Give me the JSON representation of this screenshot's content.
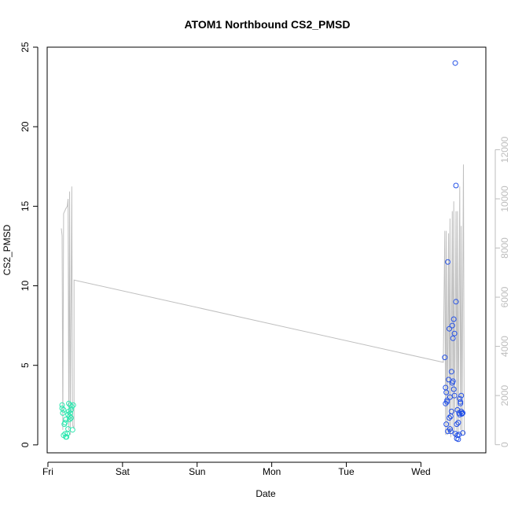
{
  "chart_data": {
    "type": "scatter",
    "title": "ATOM1 Northbound CS2_PMSD",
    "xlabel": "Date",
    "ylabel": "CS2_PMSD",
    "x_ticks": [
      "Fri",
      "Sat",
      "Sun",
      "Mon",
      "Tue",
      "Wed"
    ],
    "xlim": [
      -0.01,
      5.87
    ],
    "ylim": [
      -0.5,
      25
    ],
    "y_ticks": [
      0,
      5,
      10,
      15,
      20,
      25
    ],
    "y2_ticks": [
      0,
      2000,
      4000,
      6000,
      8000,
      10000,
      12000
    ],
    "y2lim": [
      -330,
      16170
    ],
    "grid": false,
    "colors": {
      "series1": "#2ee8b0",
      "series2": "#2451e6",
      "line": "#bfbfbf"
    },
    "series": [
      {
        "points": [
          [
            0.19,
            2.5
          ],
          [
            0.19,
            2.3
          ],
          [
            0.2,
            2.0
          ],
          [
            0.21,
            2.2
          ],
          [
            0.21,
            0.6
          ],
          [
            0.22,
            1.3
          ],
          [
            0.23,
            0.7
          ],
          [
            0.23,
            1.4
          ],
          [
            0.24,
            0.5
          ],
          [
            0.24,
            1.6
          ],
          [
            0.25,
            0.5
          ],
          [
            0.26,
            0.7
          ],
          [
            0.27,
            1.0
          ],
          [
            0.27,
            1.9
          ],
          [
            0.28,
            2.6
          ],
          [
            0.28,
            2.1
          ],
          [
            0.29,
            1.8
          ],
          [
            0.29,
            1.6
          ],
          [
            0.3,
            2.5
          ],
          [
            0.3,
            2.0
          ],
          [
            0.31,
            2.2
          ],
          [
            0.31,
            1.7
          ],
          [
            0.32,
            2.4
          ],
          [
            0.33,
            0.95
          ],
          [
            0.34,
            2.5
          ]
        ]
      },
      {
        "points": [
          [
            5.32,
            5.5
          ],
          [
            5.33,
            3.6
          ],
          [
            5.33,
            2.6
          ],
          [
            5.34,
            3.3
          ],
          [
            5.34,
            1.3
          ],
          [
            5.35,
            2.8
          ],
          [
            5.35,
            2.7
          ],
          [
            5.36,
            11.5
          ],
          [
            5.36,
            0.85
          ],
          [
            5.37,
            4.1
          ],
          [
            5.38,
            7.3
          ],
          [
            5.38,
            1.7
          ],
          [
            5.39,
            3.0
          ],
          [
            5.39,
            1.0
          ],
          [
            5.4,
            1.8
          ],
          [
            5.4,
            0.85
          ],
          [
            5.41,
            4.6
          ],
          [
            5.41,
            2.1
          ],
          [
            5.42,
            7.5
          ],
          [
            5.42,
            3.9
          ],
          [
            5.43,
            6.7
          ],
          [
            5.43,
            4.0
          ],
          [
            5.44,
            3.5
          ],
          [
            5.44,
            7.9
          ],
          [
            5.45,
            7.0
          ],
          [
            5.45,
            3.1
          ],
          [
            5.46,
            0.7
          ],
          [
            5.46,
            24.0
          ],
          [
            5.47,
            16.3
          ],
          [
            5.47,
            9.0
          ],
          [
            5.48,
            0.4
          ],
          [
            5.48,
            1.3
          ],
          [
            5.49,
            2.2
          ],
          [
            5.49,
            0.6
          ],
          [
            5.5,
            1.4
          ],
          [
            5.5,
            0.35
          ],
          [
            5.51,
            2.0
          ],
          [
            5.51,
            0.65
          ],
          [
            5.52,
            2.9
          ],
          [
            5.52,
            1.9
          ],
          [
            5.53,
            2.6
          ],
          [
            5.53,
            2.7
          ],
          [
            5.54,
            2.1
          ],
          [
            5.54,
            3.1
          ],
          [
            5.55,
            2.0
          ],
          [
            5.55,
            1.95
          ],
          [
            5.56,
            0.75
          ],
          [
            5.56,
            2.0
          ]
        ]
      },
      {
        "axis": "secondary",
        "points": [
          [
            0.18,
            8800
          ],
          [
            0.19,
            8500
          ],
          [
            0.2,
            600
          ],
          [
            0.21,
            9400
          ],
          [
            0.24,
            9600
          ],
          [
            0.26,
            9700
          ],
          [
            0.27,
            10000
          ],
          [
            0.28,
            600
          ],
          [
            0.29,
            10300
          ],
          [
            0.3,
            400
          ],
          [
            0.32,
            10500
          ],
          [
            0.33,
            800
          ],
          [
            0.35,
            650
          ],
          [
            0.35,
            6700
          ],
          [
            5.3,
            3350
          ],
          [
            5.32,
            8700
          ],
          [
            5.33,
            400
          ],
          [
            5.34,
            8700
          ],
          [
            5.35,
            400
          ],
          [
            5.37,
            8600
          ],
          [
            5.38,
            500
          ],
          [
            5.39,
            9200
          ],
          [
            5.4,
            300
          ],
          [
            5.42,
            9500
          ],
          [
            5.43,
            400
          ],
          [
            5.44,
            9900
          ],
          [
            5.45,
            300
          ],
          [
            5.47,
            9500
          ],
          [
            5.48,
            500
          ],
          [
            5.49,
            9500
          ],
          [
            5.5,
            400
          ],
          [
            5.52,
            10500
          ],
          [
            5.53,
            600
          ],
          [
            5.54,
            8900
          ],
          [
            5.55,
            400
          ],
          [
            5.57,
            11400
          ],
          [
            5.58,
            400
          ]
        ]
      }
    ]
  }
}
